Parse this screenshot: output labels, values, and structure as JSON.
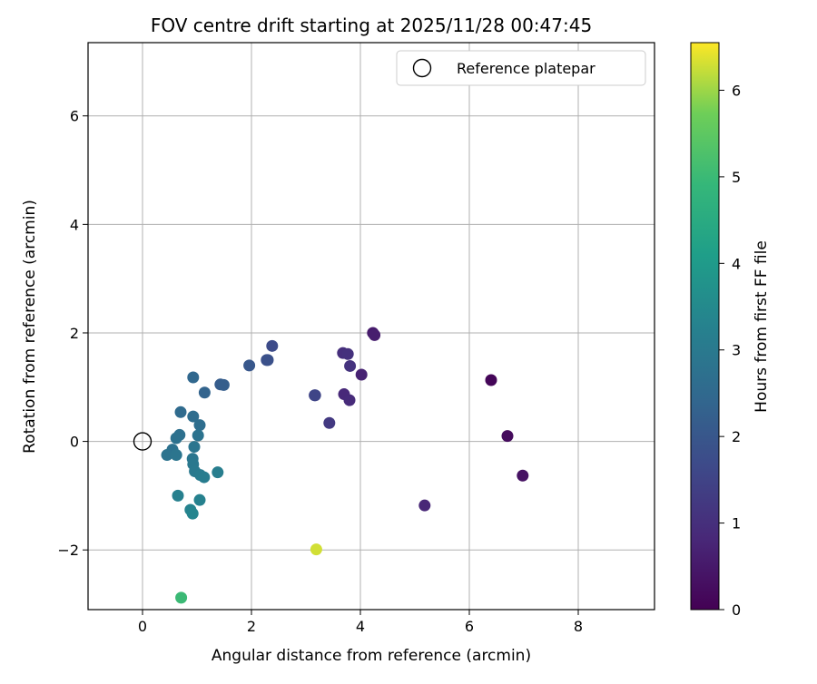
{
  "chart_data": {
    "type": "scatter",
    "title": "FOV centre drift starting at 2025/11/28 00:47:45",
    "xlabel": "Angular distance from reference (arcmin)",
    "ylabel": "Rotation from reference (arcmin)",
    "xlim": [
      -1.0,
      9.4
    ],
    "ylim": [
      -3.1,
      7.35
    ],
    "xticks": [
      0,
      2,
      4,
      6,
      8
    ],
    "yticks": [
      -2,
      0,
      2,
      4,
      6
    ],
    "grid": true,
    "legend_position": "top-right",
    "legend": [
      {
        "label": "Reference platepar",
        "marker": "open-circle",
        "point": [
          0,
          0
        ]
      }
    ],
    "colorbar": {
      "label": "Hours from first FF file",
      "range": [
        0,
        6.55
      ],
      "ticks": [
        0,
        1,
        2,
        3,
        4,
        5,
        6
      ],
      "colormap": "viridis"
    },
    "points": [
      {
        "x": 6.4,
        "y": 1.13,
        "h": 0.1
      },
      {
        "x": 6.7,
        "y": 0.1,
        "h": 0.2
      },
      {
        "x": 6.98,
        "y": -0.63,
        "h": 0.35
      },
      {
        "x": 4.23,
        "y": 2.0,
        "h": 0.55
      },
      {
        "x": 4.26,
        "y": 1.96,
        "h": 0.6
      },
      {
        "x": 4.02,
        "y": 1.23,
        "h": 0.7
      },
      {
        "x": 5.18,
        "y": -1.18,
        "h": 0.8
      },
      {
        "x": 3.7,
        "y": 0.87,
        "h": 0.85
      },
      {
        "x": 3.8,
        "y": 0.76,
        "h": 0.9
      },
      {
        "x": 3.68,
        "y": 1.63,
        "h": 1.0
      },
      {
        "x": 3.77,
        "y": 1.61,
        "h": 1.05
      },
      {
        "x": 3.81,
        "y": 1.39,
        "h": 1.1
      },
      {
        "x": 3.43,
        "y": 0.34,
        "h": 1.25
      },
      {
        "x": 3.16,
        "y": 0.85,
        "h": 1.5
      },
      {
        "x": 3.17,
        "y": 0.85,
        "h": 1.55
      },
      {
        "x": 2.38,
        "y": 1.76,
        "h": 1.7
      },
      {
        "x": 2.28,
        "y": 1.5,
        "h": 1.8
      },
      {
        "x": 2.3,
        "y": 1.5,
        "h": 1.85
      },
      {
        "x": 1.96,
        "y": 1.4,
        "h": 2.0
      },
      {
        "x": 1.43,
        "y": 1.05,
        "h": 2.15
      },
      {
        "x": 1.49,
        "y": 1.04,
        "h": 2.2
      },
      {
        "x": 1.14,
        "y": 0.9,
        "h": 2.35
      },
      {
        "x": 0.93,
        "y": 1.18,
        "h": 2.45
      },
      {
        "x": 0.7,
        "y": 0.54,
        "h": 2.55
      },
      {
        "x": 0.93,
        "y": 0.46,
        "h": 2.6
      },
      {
        "x": 1.05,
        "y": 0.3,
        "h": 2.65
      },
      {
        "x": 0.68,
        "y": 0.12,
        "h": 2.7
      },
      {
        "x": 0.62,
        "y": 0.06,
        "h": 2.75
      },
      {
        "x": 1.02,
        "y": 0.11,
        "h": 2.8
      },
      {
        "x": 0.95,
        "y": -0.1,
        "h": 2.85
      },
      {
        "x": 0.55,
        "y": -0.15,
        "h": 2.75
      },
      {
        "x": 0.45,
        "y": -0.25,
        "h": 2.8
      },
      {
        "x": 0.62,
        "y": -0.25,
        "h": 2.85
      },
      {
        "x": 0.92,
        "y": -0.32,
        "h": 2.9
      },
      {
        "x": 0.93,
        "y": -0.42,
        "h": 2.95
      },
      {
        "x": 0.96,
        "y": -0.55,
        "h": 3.0
      },
      {
        "x": 1.06,
        "y": -0.62,
        "h": 3.05
      },
      {
        "x": 1.13,
        "y": -0.66,
        "h": 3.1
      },
      {
        "x": 1.38,
        "y": -0.57,
        "h": 3.15
      },
      {
        "x": 0.65,
        "y": -1.0,
        "h": 3.2
      },
      {
        "x": 1.05,
        "y": -1.08,
        "h": 3.25
      },
      {
        "x": 0.88,
        "y": -1.26,
        "h": 3.3
      },
      {
        "x": 0.92,
        "y": -1.33,
        "h": 3.35
      },
      {
        "x": 0.71,
        "y": -2.88,
        "h": 5.0
      },
      {
        "x": 3.19,
        "y": -1.99,
        "h": 6.3
      }
    ]
  }
}
